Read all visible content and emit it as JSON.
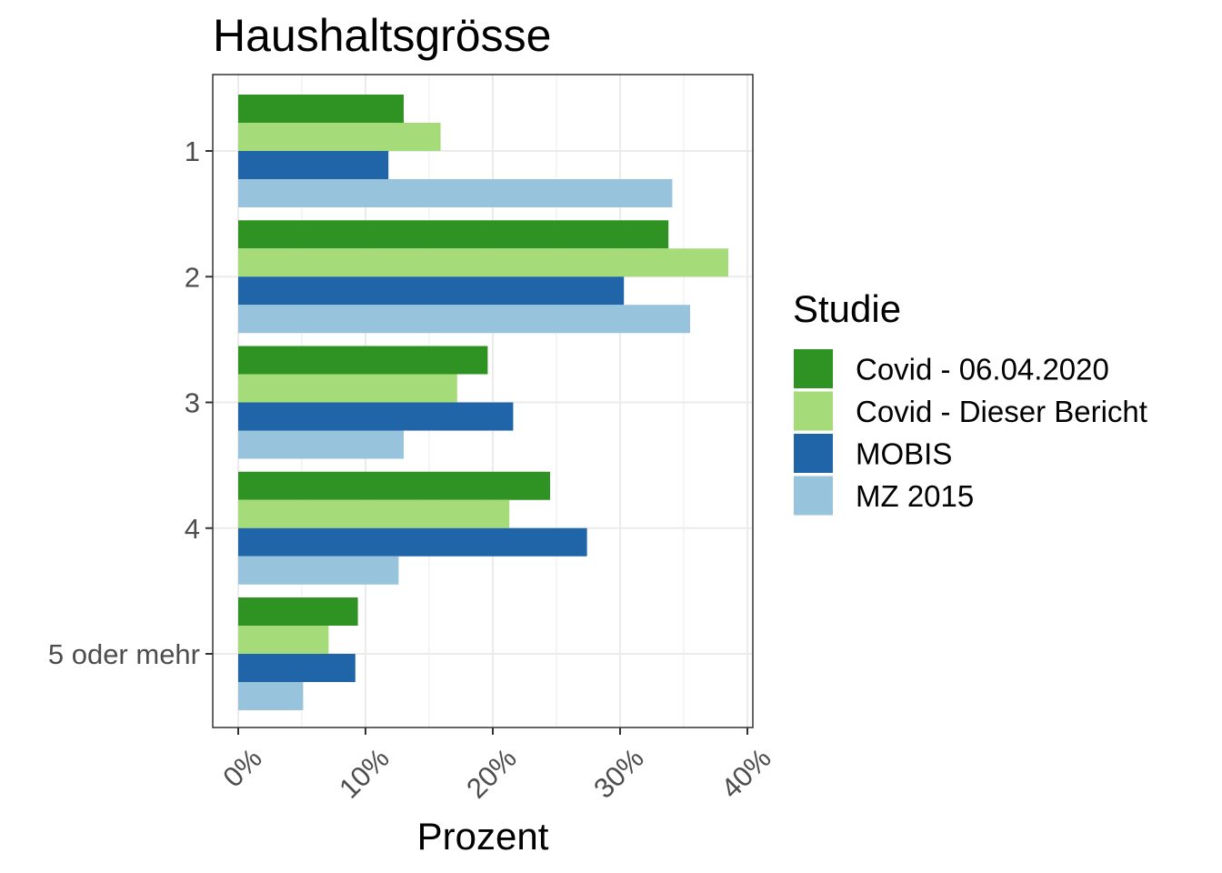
{
  "chart_data": {
    "type": "bar",
    "orientation": "horizontal",
    "title": "Haushaltsgrösse",
    "xlabel": "Prozent",
    "ylabel": "",
    "categories": [
      "1",
      "2",
      "3",
      "4",
      "5 oder mehr"
    ],
    "xlim": [
      0,
      40
    ],
    "xticks": [
      0,
      10,
      20,
      30,
      40
    ],
    "xtick_labels": [
      "0%",
      "10%",
      "20%",
      "30%",
      "40%"
    ],
    "grid": true,
    "legend": {
      "title": "Studie",
      "placement": "right"
    },
    "series": [
      {
        "name": "Covid - 06.04.2020",
        "color": "#2e9322",
        "values": [
          13.0,
          33.8,
          19.6,
          24.5,
          9.4
        ]
      },
      {
        "name": "Covid - Dieser Bericht",
        "color": "#a6db7a",
        "values": [
          15.9,
          38.5,
          17.2,
          21.3,
          7.1
        ]
      },
      {
        "name": "MOBIS",
        "color": "#1f65a7",
        "values": [
          11.8,
          30.3,
          21.6,
          27.4,
          9.2
        ]
      },
      {
        "name": "MZ 2015",
        "color": "#97c3dc",
        "values": [
          34.1,
          35.5,
          13.0,
          12.6,
          5.1
        ]
      }
    ]
  }
}
